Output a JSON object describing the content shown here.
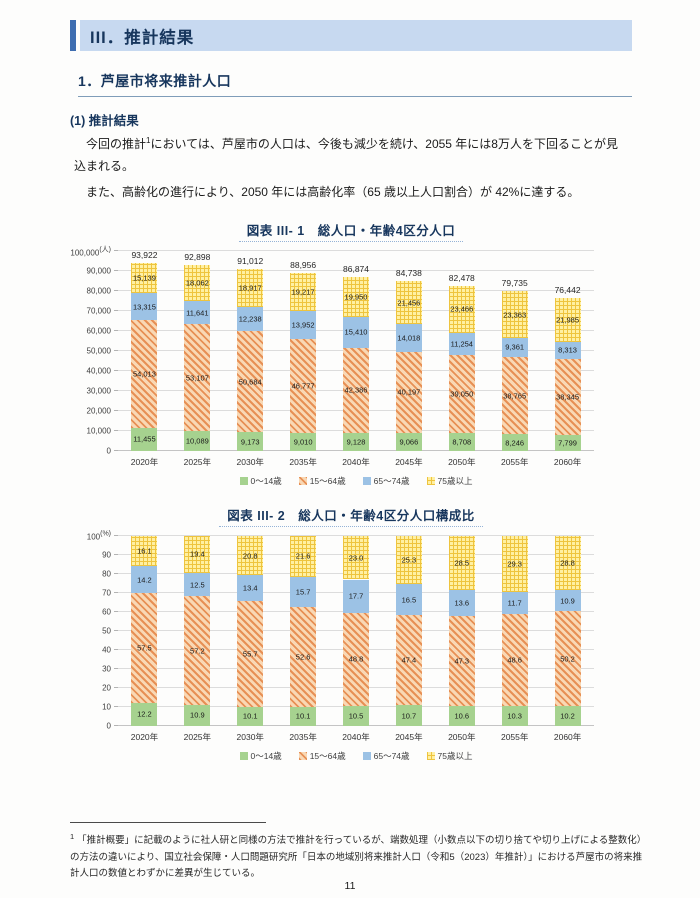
{
  "header": {
    "title": "III．推計結果"
  },
  "section_title": "1．芦屋市将来推計人口",
  "subsection_title": "(1) 推計結果",
  "paragraph1": {
    "pre": "今回の推計",
    "sup": "1",
    "post": "においては、芦屋市の人口は、今後も減少を続け、2055 年には8万人を下回ることが見込まれる。"
  },
  "paragraph2": "また、高齢化の進行により、2050 年には高齢化率（65 歳以上人口割合）が 42%に達する。",
  "chart_data": [
    {
      "type": "bar",
      "stacked": true,
      "title": "図表 III- 1　総人口・年齢4区分人口",
      "unit": "(人)",
      "value_format": "thousands",
      "ylim": [
        0,
        100000
      ],
      "ytick_step": 10000,
      "grid": true,
      "legend_position": "bottom",
      "categories": [
        "2020年",
        "2025年",
        "2030年",
        "2035年",
        "2040年",
        "2045年",
        "2050年",
        "2055年",
        "2060年"
      ],
      "series": [
        {
          "name": "0～14歳",
          "pattern": "green-solid",
          "color": "#a6d28f",
          "values": [
            11455,
            10089,
            9173,
            9010,
            9128,
            9066,
            8708,
            8246,
            7799
          ]
        },
        {
          "name": "15～64歳",
          "pattern": "orange-diagonal",
          "color": "#e79055",
          "values": [
            54013,
            53107,
            50684,
            46777,
            42386,
            40197,
            39050,
            38765,
            38345
          ]
        },
        {
          "name": "65～74歳",
          "pattern": "blue-solid",
          "color": "#9cc2e5",
          "values": [
            13315,
            11641,
            12238,
            13952,
            15410,
            14018,
            11254,
            9361,
            8313
          ]
        },
        {
          "name": "75歳以上",
          "pattern": "yellow-grid",
          "color": "#ffe27a",
          "values": [
            15139,
            18062,
            18917,
            19217,
            19950,
            21456,
            23466,
            23363,
            21985
          ]
        }
      ],
      "totals": [
        93922,
        92898,
        91012,
        88956,
        86874,
        84738,
        82478,
        79735,
        76442
      ]
    },
    {
      "type": "bar",
      "stacked": true,
      "title": "図表 III- 2　総人口・年齢4区分人口構成比",
      "unit": "(%)",
      "value_format": "decimal1",
      "ylim": [
        0,
        100
      ],
      "ytick_step": 10,
      "grid": true,
      "legend_position": "bottom",
      "categories": [
        "2020年",
        "2025年",
        "2030年",
        "2035年",
        "2040年",
        "2045年",
        "2050年",
        "2055年",
        "2060年"
      ],
      "series": [
        {
          "name": "0～14歳",
          "pattern": "green-solid",
          "color": "#a6d28f",
          "values": [
            12.2,
            10.9,
            10.1,
            10.1,
            10.5,
            10.7,
            10.6,
            10.3,
            10.2
          ]
        },
        {
          "name": "15～64歳",
          "pattern": "orange-diagonal",
          "color": "#e79055",
          "values": [
            57.5,
            57.2,
            55.7,
            52.6,
            48.8,
            47.4,
            47.3,
            48.6,
            50.2
          ]
        },
        {
          "name": "65～74歳",
          "pattern": "blue-solid",
          "color": "#9cc2e5",
          "values": [
            14.2,
            12.5,
            13.4,
            15.7,
            17.7,
            16.5,
            13.6,
            11.7,
            10.9
          ]
        },
        {
          "name": "75歳以上",
          "pattern": "yellow-grid",
          "color": "#ffe27a",
          "values": [
            16.1,
            19.4,
            20.8,
            21.6,
            23.0,
            25.3,
            28.5,
            29.3,
            28.8
          ]
        }
      ]
    }
  ],
  "footnote": {
    "marker": "1",
    "text": "「推計概要」に記載のように社人研と同様の方法で推計を行っているが、端数処理（小数点以下の切り捨てや切り上げによる整数化）の方法の違いにより、国立社会保障・人口問題研究所「日本の地域別将来推計人口（令和5（2023）年推計）」における芦屋市の将来推計人口の数値とわずかに差異が生じている。"
  },
  "page_number": "11",
  "colors": {
    "accent_bar": "#3e6db0",
    "header_band_bg": "#c7d9f0",
    "heading_text": "#17365d",
    "section_underline": "#7f9db9",
    "grid_line": "#dcdcdc"
  }
}
